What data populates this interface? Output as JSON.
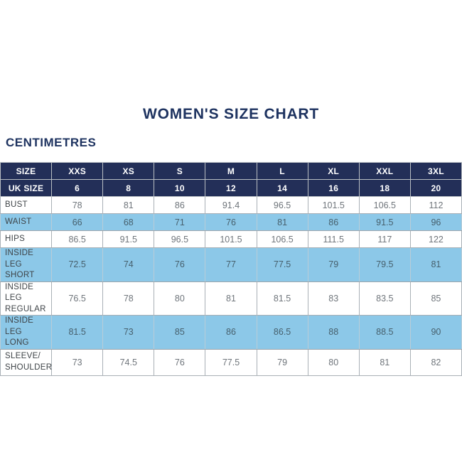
{
  "title": "WOMEN'S SIZE CHART",
  "unit_label": "CENTIMETRES",
  "colors": {
    "navy_header": "#232f58",
    "title_navy": "#1e3360",
    "light_blue_row": "#8cc8e8",
    "white_row": "#ffffff",
    "border_gray": "#a9b0b6"
  },
  "table": {
    "size_row": {
      "label": "SIZE",
      "sizes": [
        "XXS",
        "XS",
        "S",
        "M",
        "L",
        "XL",
        "XXL",
        "3XL"
      ]
    },
    "uk_row": {
      "label": "UK SIZE",
      "values": [
        "6",
        "8",
        "10",
        "12",
        "14",
        "16",
        "18",
        "20"
      ]
    },
    "rows": [
      {
        "label": "BUST",
        "values": [
          "78",
          "81",
          "86",
          "91.4",
          "96.5",
          "101.5",
          "106.5",
          "112"
        ]
      },
      {
        "label": "WAIST",
        "values": [
          "66",
          "68",
          "71",
          "76",
          "81",
          "86",
          "91.5",
          "96"
        ]
      },
      {
        "label": "HIPS",
        "values": [
          "86.5",
          "91.5",
          "96.5",
          "101.5",
          "106.5",
          "111.5",
          "117",
          "122"
        ]
      },
      {
        "label": "INSIDE LEG\nSHORT",
        "values": [
          "72.5",
          "74",
          "76",
          "77",
          "77.5",
          "79",
          "79.5",
          "81"
        ]
      },
      {
        "label": "INSIDE LEG\nREGULAR",
        "values": [
          "76.5",
          "78",
          "80",
          "81",
          "81.5",
          "83",
          "83.5",
          "85"
        ]
      },
      {
        "label": "INSIDE LEG\nLONG",
        "values": [
          "81.5",
          "73",
          "85",
          "86",
          "86.5",
          "88",
          "88.5",
          "90"
        ]
      },
      {
        "label": "SLEEVE/\nSHOULDER",
        "values": [
          "73",
          "74.5",
          "76",
          "77.5",
          "79",
          "80",
          "81",
          "82"
        ]
      }
    ]
  }
}
